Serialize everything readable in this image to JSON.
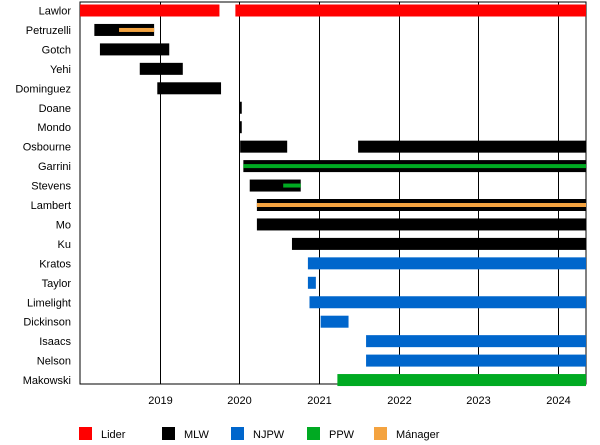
{
  "chart_data": {
    "type": "timeline",
    "x_axis": {
      "min": 2018.0,
      "max": 2024.35,
      "ticks": [
        2019,
        2020,
        2021,
        2022,
        2023,
        2024
      ]
    },
    "grid": {
      "vertical": true,
      "horizontal": false
    },
    "legend": {
      "placement": "bottom",
      "entries": [
        {
          "key": "Lider",
          "label": "Lider",
          "color": "#ff0000"
        },
        {
          "key": "MLW",
          "label": "MLW",
          "color": "#000000"
        },
        {
          "key": "NJPW",
          "label": "NJPW",
          "color": "#0066cc"
        },
        {
          "key": "PPW",
          "label": "PPW",
          "color": "#00aa22"
        },
        {
          "key": "Manager",
          "label": "Mánager",
          "color": "#f4a340"
        }
      ]
    },
    "members": [
      {
        "name": "Lawlor",
        "bars": [
          {
            "group": "Lider",
            "start": 2018.0,
            "end": 2019.75
          },
          {
            "group": "Lider",
            "start": 2019.95,
            "end": 2024.35
          }
        ]
      },
      {
        "name": "Petruzelli",
        "bars": [
          {
            "group": "MLW",
            "start": 2018.18,
            "end": 2018.93
          },
          {
            "group": "Manager",
            "start": 2018.49,
            "end": 2018.93,
            "overlay": true
          }
        ]
      },
      {
        "name": "Gotch",
        "bars": [
          {
            "group": "MLW",
            "start": 2018.25,
            "end": 2019.12
          }
        ]
      },
      {
        "name": "Yehi",
        "bars": [
          {
            "group": "MLW",
            "start": 2018.75,
            "end": 2019.29
          }
        ]
      },
      {
        "name": "Dominguez",
        "bars": [
          {
            "group": "MLW",
            "start": 2018.97,
            "end": 2019.77
          }
        ]
      },
      {
        "name": "Doane",
        "bars": [
          {
            "group": "MLW",
            "start": 2020.0,
            "end": 2020.03
          }
        ]
      },
      {
        "name": "Mondo",
        "bars": [
          {
            "group": "MLW",
            "start": 2020.0,
            "end": 2020.03
          }
        ]
      },
      {
        "name": "Osbourne",
        "bars": [
          {
            "group": "MLW",
            "start": 2020.01,
            "end": 2020.6
          },
          {
            "group": "MLW",
            "start": 2021.49,
            "end": 2024.35
          }
        ]
      },
      {
        "name": "Garrini",
        "bars": [
          {
            "group": "MLW",
            "start": 2020.05,
            "end": 2024.35
          },
          {
            "group": "PPW",
            "start": 2020.05,
            "end": 2024.35,
            "overlay": true
          }
        ]
      },
      {
        "name": "Stevens",
        "bars": [
          {
            "group": "MLW",
            "start": 2020.13,
            "end": 2020.77
          },
          {
            "group": "PPW",
            "start": 2020.55,
            "end": 2020.77,
            "overlay": true
          }
        ]
      },
      {
        "name": "Lambert",
        "bars": [
          {
            "group": "MLW",
            "start": 2020.22,
            "end": 2024.35
          },
          {
            "group": "Manager",
            "start": 2020.22,
            "end": 2024.35,
            "overlay": true
          }
        ]
      },
      {
        "name": "Mo",
        "bars": [
          {
            "group": "MLW",
            "start": 2020.22,
            "end": 2024.35
          }
        ]
      },
      {
        "name": "Ku",
        "bars": [
          {
            "group": "MLW",
            "start": 2020.66,
            "end": 2024.35
          }
        ]
      },
      {
        "name": "Kratos",
        "bars": [
          {
            "group": "NJPW",
            "start": 2020.86,
            "end": 2024.35
          }
        ]
      },
      {
        "name": "Taylor",
        "bars": [
          {
            "group": "NJPW",
            "start": 2020.86,
            "end": 2020.96
          }
        ]
      },
      {
        "name": "Limelight",
        "bars": [
          {
            "group": "NJPW",
            "start": 2020.88,
            "end": 2024.35
          }
        ]
      },
      {
        "name": "Dickinson",
        "bars": [
          {
            "group": "NJPW",
            "start": 2021.02,
            "end": 2021.37
          }
        ]
      },
      {
        "name": "Isaacs",
        "bars": [
          {
            "group": "NJPW",
            "start": 2021.59,
            "end": 2024.35
          }
        ]
      },
      {
        "name": "Nelson",
        "bars": [
          {
            "group": "NJPW",
            "start": 2021.59,
            "end": 2024.35
          }
        ]
      },
      {
        "name": "Makowski",
        "bars": [
          {
            "group": "PPW",
            "start": 2021.23,
            "end": 2024.35
          }
        ]
      }
    ]
  }
}
